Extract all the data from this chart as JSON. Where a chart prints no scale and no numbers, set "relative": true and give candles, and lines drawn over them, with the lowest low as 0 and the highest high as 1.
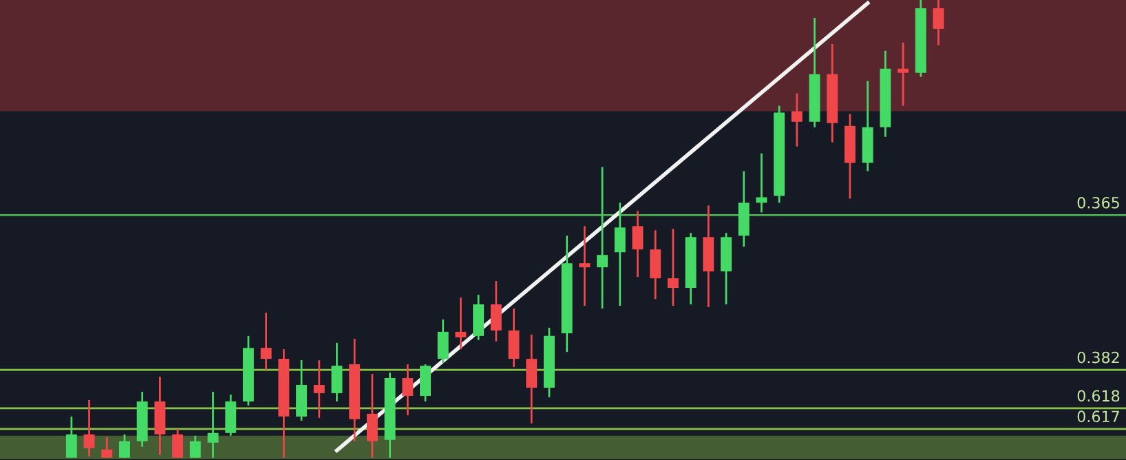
{
  "chart_data": {
    "type": "candlestick",
    "relative": true,
    "categories": [
      null,
      null,
      null,
      null,
      null,
      null,
      null,
      null,
      null,
      null,
      null,
      null,
      null,
      null,
      null,
      null,
      null,
      null,
      null,
      null,
      null,
      null,
      null,
      null,
      null,
      null,
      null,
      null,
      null,
      null,
      null,
      null,
      null,
      null,
      null,
      null,
      null,
      null,
      null,
      null,
      null,
      null,
      null,
      null,
      null,
      null,
      null,
      null,
      null,
      null
    ],
    "ohlc": [
      [
        0,
        0.09,
        0,
        0.051
      ],
      [
        0.051,
        0.126,
        0.003,
        0.021
      ],
      [
        0.018,
        0.045,
        0,
        0
      ],
      [
        0,
        0.051,
        0,
        0.036
      ],
      [
        0.036,
        0.144,
        0.024,
        0.123
      ],
      [
        0.123,
        0.177,
        0.006,
        0.051
      ],
      [
        0.051,
        0.063,
        0,
        0
      ],
      [
        0,
        0.048,
        0,
        0.036
      ],
      [
        0.033,
        0.144,
        0,
        0.054
      ],
      [
        0.054,
        0.138,
        0.048,
        0.123
      ],
      [
        0.123,
        0.266,
        0.114,
        0.24
      ],
      [
        0.24,
        0.317,
        0.192,
        0.216
      ],
      [
        0.216,
        0.237,
        0,
        0.09
      ],
      [
        0.09,
        0.213,
        0.081,
        0.159
      ],
      [
        0.159,
        0.213,
        0.087,
        0.141
      ],
      [
        0.141,
        0.251,
        0.123,
        0.201
      ],
      [
        0.204,
        0.26,
        0.036,
        0.084
      ],
      [
        0.096,
        0.183,
        0,
        0.036
      ],
      [
        0.039,
        0.186,
        0,
        0.174
      ],
      [
        0.174,
        0.204,
        0.093,
        0.135
      ],
      [
        0.135,
        0.204,
        0.123,
        0.201
      ],
      [
        0.216,
        0.302,
        0.207,
        0.275
      ],
      [
        0.275,
        0.35,
        0.237,
        0.263
      ],
      [
        0.266,
        0.356,
        0.257,
        0.335
      ],
      [
        0.335,
        0.386,
        0.254,
        0.278
      ],
      [
        0.278,
        0.326,
        0.198,
        0.216
      ],
      [
        0.216,
        0.269,
        0.075,
        0.153
      ],
      [
        0.153,
        0.284,
        0.132,
        0.266
      ],
      [
        0.272,
        0.485,
        0.231,
        0.425
      ],
      [
        0.425,
        0.506,
        0.332,
        0.416
      ],
      [
        0.416,
        0.635,
        0.326,
        0.443
      ],
      [
        0.449,
        0.557,
        0.332,
        0.503
      ],
      [
        0.506,
        0.539,
        0.395,
        0.455
      ],
      [
        0.455,
        0.497,
        0.347,
        0.392
      ],
      [
        0.392,
        0.5,
        0.332,
        0.371
      ],
      [
        0.371,
        0.491,
        0.335,
        0.482
      ],
      [
        0.482,
        0.551,
        0.329,
        0.407
      ],
      [
        0.407,
        0.491,
        0.335,
        0.482
      ],
      [
        0.485,
        0.626,
        0.461,
        0.557
      ],
      [
        0.557,
        0.665,
        0.536,
        0.569
      ],
      [
        0.572,
        0.769,
        0.557,
        0.754
      ],
      [
        0.757,
        0.796,
        0.68,
        0.734
      ],
      [
        0.734,
        0.961,
        0.722,
        0.838
      ],
      [
        0.838,
        0.904,
        0.689,
        0.731
      ],
      [
        0.725,
        0.751,
        0.566,
        0.644
      ],
      [
        0.644,
        0.823,
        0.626,
        0.722
      ],
      [
        0.722,
        0.889,
        0.701,
        0.85
      ],
      [
        0.85,
        0.907,
        0.769,
        0.841
      ],
      [
        0.841,
        1,
        0.832,
        0.982
      ],
      [
        0.982,
        1,
        0.901,
        0.937
      ]
    ],
    "series": [
      {
        "type": "line",
        "color": "#f2f2f2",
        "values": [
          null,
          null,
          null,
          null,
          null,
          null,
          null,
          null,
          null,
          null,
          null,
          null,
          null,
          null,
          null,
          0.016,
          null,
          null,
          null,
          null,
          null,
          null,
          null,
          null,
          null,
          null,
          null,
          null,
          null,
          null,
          null,
          null,
          null,
          null,
          null,
          null,
          null,
          null,
          null,
          null,
          null,
          null,
          null,
          null,
          null,
          0.993,
          null,
          null,
          null,
          null
        ]
      }
    ],
    "ref_lines": [
      {
        "axis": "y",
        "value": 0.53,
        "color": "#4caf50"
      },
      {
        "axis": "y",
        "value": 0.192,
        "color": "#8bc34a"
      },
      {
        "axis": "y",
        "value": 0.108,
        "color": "#8bc34a"
      },
      {
        "axis": "y",
        "value": 0.063,
        "color": "#8bc34a"
      }
    ],
    "annotations": [
      {
        "text": "0.365",
        "y": 0.53
      },
      {
        "text": "0.382",
        "y": 0.192
      },
      {
        "text": "0.618",
        "y": 0.108
      },
      {
        "text": "0.617",
        "y": 0.063
      }
    ],
    "bands": [
      {
        "axis": "y",
        "from": 0.76,
        "to": 1.0,
        "color": "#c0393b"
      },
      {
        "axis": "y",
        "from": 0,
        "to": 0.045,
        "color": "#8bc34a"
      }
    ]
  }
}
